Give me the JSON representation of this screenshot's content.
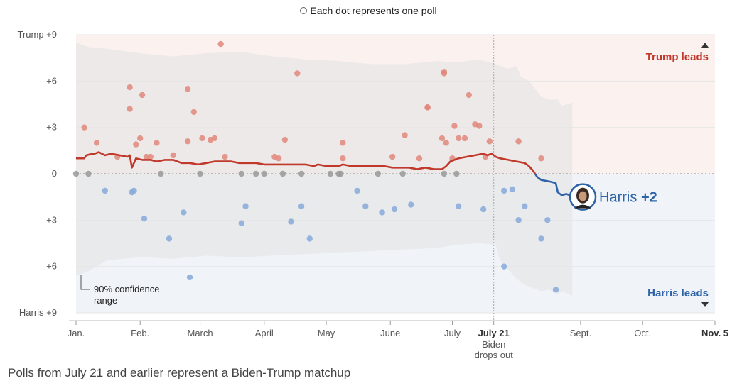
{
  "legend": {
    "text": "Each dot represents one poll"
  },
  "footnote": "Polls from July 21 and earlier represent a Biden-Trump matchup",
  "colors": {
    "trump": "#c0392b",
    "harris": "#2e63a8",
    "trump_dot": "#e0877a",
    "harris_dot": "#86a9d9",
    "tie_dot": "#999999"
  },
  "chart_data": {
    "type": "scatter",
    "y_tick_labels": [
      "Trump +9",
      "+6",
      "+3",
      "0",
      "+3",
      "+6",
      "Harris +9"
    ],
    "ylim": [
      -9,
      9
    ],
    "x_tick_labels": [
      "Jan.",
      "Feb.",
      "March",
      "April",
      "May",
      "June",
      "July",
      "July 21",
      "Sept.",
      "Oct.",
      "Nov. 5"
    ],
    "x_ticks": [
      1,
      32,
      61,
      92,
      122,
      153,
      183,
      203,
      245,
      275,
      310
    ],
    "xlim": [
      1,
      310
    ],
    "event_label": [
      "Biden",
      "drops out"
    ],
    "region_labels": {
      "trump": "Trump leads",
      "harris": "Harris leads"
    },
    "annotation": [
      "90% confidence",
      "range"
    ],
    "end_label": {
      "name": "Harris",
      "value": "+2"
    },
    "polls": [
      [
        1,
        0
      ],
      [
        5,
        3
      ],
      [
        7,
        0
      ],
      [
        11,
        2
      ],
      [
        15,
        -1.1
      ],
      [
        21,
        1.1
      ],
      [
        27,
        5.6
      ],
      [
        27,
        4.2
      ],
      [
        28,
        -1.2
      ],
      [
        29,
        -1.1
      ],
      [
        30,
        1.9
      ],
      [
        32,
        2.3
      ],
      [
        33,
        5.1
      ],
      [
        34,
        -2.9
      ],
      [
        35,
        1.1
      ],
      [
        37,
        1.1
      ],
      [
        40,
        2.0
      ],
      [
        42,
        0
      ],
      [
        46,
        -4.2
      ],
      [
        48,
        1.2
      ],
      [
        53,
        -2.5
      ],
      [
        55,
        2.1
      ],
      [
        55,
        5.5
      ],
      [
        56,
        -6.7
      ],
      [
        58,
        4.0
      ],
      [
        61,
        0
      ],
      [
        62,
        2.3
      ],
      [
        66,
        2.2
      ],
      [
        68,
        2.3
      ],
      [
        71,
        8.4
      ],
      [
        73,
        1.1
      ],
      [
        81,
        0
      ],
      [
        81,
        -3.2
      ],
      [
        83,
        -2.1
      ],
      [
        88,
        0
      ],
      [
        92,
        0
      ],
      [
        97,
        1.1
      ],
      [
        99,
        1.0
      ],
      [
        101,
        0
      ],
      [
        102,
        2.2
      ],
      [
        105,
        -3.1
      ],
      [
        108,
        6.5
      ],
      [
        110,
        -2.1
      ],
      [
        110,
        0
      ],
      [
        114,
        -4.2
      ],
      [
        124,
        0
      ],
      [
        128,
        0
      ],
      [
        129,
        0
      ],
      [
        130,
        2.0
      ],
      [
        130,
        1.0
      ],
      [
        137,
        -1.1
      ],
      [
        141,
        -2.1
      ],
      [
        147,
        0
      ],
      [
        149,
        -2.5
      ],
      [
        154,
        1.1
      ],
      [
        155,
        -2.3
      ],
      [
        159,
        0
      ],
      [
        160,
        2.5
      ],
      [
        163,
        -2.0
      ],
      [
        167,
        1.0
      ],
      [
        171,
        4.3
      ],
      [
        171,
        4.3
      ],
      [
        178,
        2.3
      ],
      [
        179,
        6.5
      ],
      [
        179,
        6.6
      ],
      [
        179,
        0
      ],
      [
        180,
        2.0
      ],
      [
        183,
        1.0
      ],
      [
        184,
        3.1
      ],
      [
        185,
        0
      ],
      [
        186,
        2.3
      ],
      [
        186,
        -2.1
      ],
      [
        189,
        2.3
      ],
      [
        191,
        5.1
      ],
      [
        194,
        3.2
      ],
      [
        196,
        3.1
      ],
      [
        198,
        -2.3
      ],
      [
        199,
        1.1
      ],
      [
        201,
        2.1
      ],
      [
        208,
        -1.1
      ],
      [
        208,
        -6.0
      ],
      [
        212,
        -1.0
      ],
      [
        215,
        -3.0
      ],
      [
        215,
        2.1
      ],
      [
        218,
        -2.1
      ],
      [
        226,
        1.0
      ],
      [
        226,
        -4.2
      ],
      [
        229,
        -3.0
      ],
      [
        233,
        -7.5
      ]
    ],
    "trend": [
      [
        1,
        1.0
      ],
      [
        5,
        1.0
      ],
      [
        6,
        1.2
      ],
      [
        9,
        1.3
      ],
      [
        10,
        1.3
      ],
      [
        12,
        1.4
      ],
      [
        15,
        1.2
      ],
      [
        18,
        1.3
      ],
      [
        22,
        1.2
      ],
      [
        26,
        1.1
      ],
      [
        27,
        1.2
      ],
      [
        28,
        0.4
      ],
      [
        30,
        1.0
      ],
      [
        33,
        0.9
      ],
      [
        37,
        0.9
      ],
      [
        40,
        0.8
      ],
      [
        44,
        0.9
      ],
      [
        48,
        0.9
      ],
      [
        52,
        0.7
      ],
      [
        56,
        0.7
      ],
      [
        60,
        0.6
      ],
      [
        64,
        0.7
      ],
      [
        68,
        0.8
      ],
      [
        72,
        0.8
      ],
      [
        76,
        0.8
      ],
      [
        80,
        0.7
      ],
      [
        84,
        0.7
      ],
      [
        88,
        0.7
      ],
      [
        92,
        0.6
      ],
      [
        96,
        0.6
      ],
      [
        100,
        0.6
      ],
      [
        104,
        0.6
      ],
      [
        108,
        0.6
      ],
      [
        112,
        0.6
      ],
      [
        116,
        0.5
      ],
      [
        118,
        0.6
      ],
      [
        122,
        0.5
      ],
      [
        126,
        0.5
      ],
      [
        128,
        0.5
      ],
      [
        130,
        0.6
      ],
      [
        134,
        0.5
      ],
      [
        138,
        0.5
      ],
      [
        142,
        0.5
      ],
      [
        146,
        0.5
      ],
      [
        150,
        0.5
      ],
      [
        154,
        0.4
      ],
      [
        158,
        0.4
      ],
      [
        162,
        0.4
      ],
      [
        166,
        0.3
      ],
      [
        170,
        0.4
      ],
      [
        174,
        0.3
      ],
      [
        178,
        0.3
      ],
      [
        180,
        0.5
      ],
      [
        182,
        0.8
      ],
      [
        186,
        1.0
      ],
      [
        190,
        1.1
      ],
      [
        194,
        1.2
      ],
      [
        198,
        1.3
      ],
      [
        200,
        1.2
      ],
      [
        202,
        1.3
      ],
      [
        204,
        1.1
      ],
      [
        206,
        1.0
      ],
      [
        210,
        0.9
      ],
      [
        214,
        0.8
      ],
      [
        218,
        0.7
      ],
      [
        220,
        0.5
      ],
      [
        222,
        0.2
      ],
      [
        224,
        -0.2
      ],
      [
        226,
        -0.4
      ],
      [
        230,
        -0.5
      ],
      [
        233,
        -0.6
      ],
      [
        234,
        -1.2
      ],
      [
        236,
        -1.4
      ],
      [
        238,
        -1.3
      ],
      [
        240,
        -1.4
      ],
      [
        241,
        -1.5
      ]
    ],
    "band_upper": [
      [
        1,
        8.5
      ],
      [
        7,
        8.2
      ],
      [
        16,
        8.1
      ],
      [
        32,
        7.8
      ],
      [
        48,
        7.6
      ],
      [
        64,
        7.8
      ],
      [
        80,
        7.9
      ],
      [
        96,
        7.6
      ],
      [
        112,
        7.4
      ],
      [
        128,
        7.3
      ],
      [
        144,
        7.1
      ],
      [
        160,
        7.1
      ],
      [
        176,
        7.3
      ],
      [
        184,
        7.2
      ],
      [
        196,
        7.4
      ],
      [
        204,
        7.1
      ],
      [
        210,
        6.8
      ],
      [
        214,
        7.0
      ],
      [
        216,
        6.3
      ],
      [
        220,
        6.0
      ],
      [
        226,
        5.0
      ],
      [
        230,
        4.8
      ],
      [
        234,
        4.8
      ],
      [
        236,
        4.4
      ],
      [
        241,
        4.6
      ]
    ],
    "band_lower": [
      [
        1,
        -6.6
      ],
      [
        7,
        -6.3
      ],
      [
        16,
        -5.6
      ],
      [
        32,
        -5.4
      ],
      [
        48,
        -5.5
      ],
      [
        64,
        -5.3
      ],
      [
        80,
        -5.4
      ],
      [
        96,
        -5.3
      ],
      [
        112,
        -5.2
      ],
      [
        128,
        -5.1
      ],
      [
        144,
        -5.0
      ],
      [
        160,
        -4.9
      ],
      [
        176,
        -4.8
      ],
      [
        184,
        -4.6
      ],
      [
        196,
        -4.5
      ],
      [
        204,
        -4.6
      ],
      [
        206,
        -5.6
      ],
      [
        210,
        -6.2
      ],
      [
        214,
        -6.8
      ],
      [
        218,
        -7.2
      ],
      [
        222,
        -7.4
      ],
      [
        226,
        -7.6
      ],
      [
        230,
        -7.5
      ],
      [
        234,
        -7.8
      ],
      [
        236,
        -7.6
      ],
      [
        241,
        -7.9
      ]
    ],
    "grid": true
  }
}
